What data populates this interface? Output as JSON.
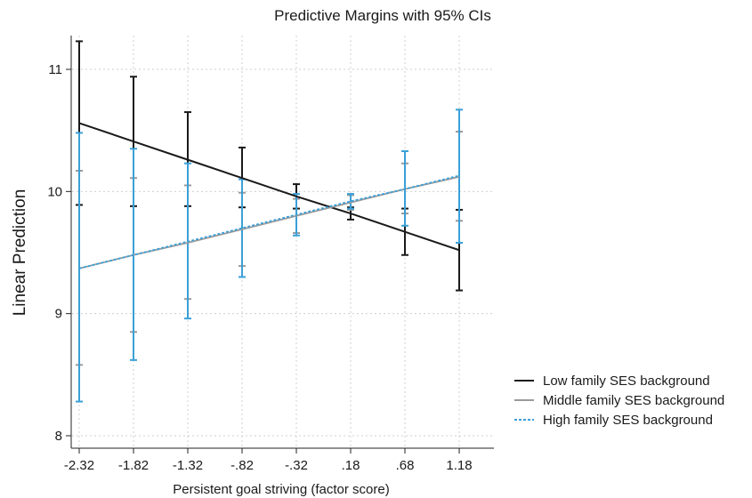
{
  "chart_data": {
    "type": "line",
    "title": "Predictive Margins with 95% CIs",
    "xlabel": "Persistent goal striving (factor score)",
    "ylabel": "Linear Prediction",
    "x": [
      -2.32,
      -1.82,
      -1.32,
      -0.82,
      -0.32,
      0.18,
      0.68,
      1.18
    ],
    "x_tick_labels": [
      "-2.32",
      "-1.82",
      "-1.32",
      "-.82",
      "-.32",
      ".18",
      ".68",
      "1.18"
    ],
    "y_ticks": [
      8,
      9,
      10,
      11
    ],
    "y_tick_labels": [
      "8",
      "9",
      "10",
      "11"
    ],
    "xlim": [
      -2.32,
      1.18
    ],
    "ylim": [
      8,
      11
    ],
    "grid": true,
    "legend_position": "right",
    "series": [
      {
        "name": "Low family SES background",
        "color": "#1a1a1a",
        "style": "solid",
        "y": [
          10.56,
          10.41,
          10.26,
          10.11,
          9.96,
          9.82,
          9.67,
          9.52
        ],
        "ci_low": [
          9.89,
          9.88,
          9.88,
          9.87,
          9.86,
          9.77,
          9.48,
          9.19
        ],
        "ci_high": [
          11.23,
          10.94,
          10.65,
          10.36,
          10.06,
          9.87,
          9.86,
          9.85
        ]
      },
      {
        "name": "Middle family SES background",
        "color": "#9a9a9a",
        "style": "solid",
        "y": [
          9.37,
          9.48,
          9.58,
          9.69,
          9.8,
          9.91,
          10.02,
          10.12
        ],
        "ci_low": [
          8.58,
          8.85,
          9.12,
          9.39,
          9.66,
          9.85,
          9.82,
          9.76
        ],
        "ci_high": [
          10.17,
          10.11,
          10.05,
          9.99,
          9.94,
          9.97,
          10.23,
          10.49
        ]
      },
      {
        "name": "High family SES background",
        "color": "#3aa0d8",
        "style": "dotted",
        "y": [
          9.37,
          9.48,
          9.59,
          9.7,
          9.81,
          9.92,
          10.02,
          10.13
        ],
        "ci_low": [
          8.28,
          8.62,
          8.96,
          9.3,
          9.64,
          9.86,
          9.72,
          9.58
        ],
        "ci_high": [
          10.48,
          10.35,
          10.23,
          10.1,
          9.98,
          9.98,
          10.33,
          10.67
        ]
      }
    ]
  }
}
